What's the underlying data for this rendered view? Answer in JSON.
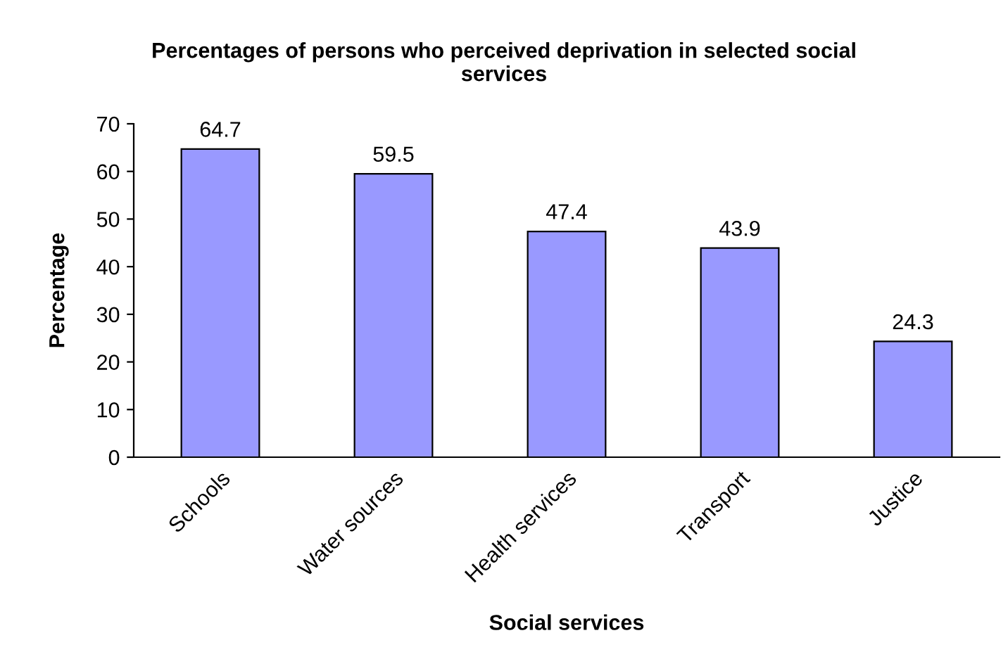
{
  "chart_data": {
    "type": "bar",
    "title": "Percentages of persons who perceived deprivation in selected social\nservices",
    "xlabel": "Social services",
    "ylabel": "Percentage",
    "categories": [
      "Schools",
      "Water sources",
      "Health services",
      "Transport",
      "Justice"
    ],
    "values": [
      64.7,
      59.5,
      47.4,
      43.9,
      24.3
    ],
    "color": "#9999ff",
    "ylim": [
      0,
      70
    ],
    "yticks": [
      0,
      10,
      20,
      30,
      40,
      50,
      60,
      70
    ],
    "data_labels": true,
    "grid": false,
    "legend": false
  }
}
